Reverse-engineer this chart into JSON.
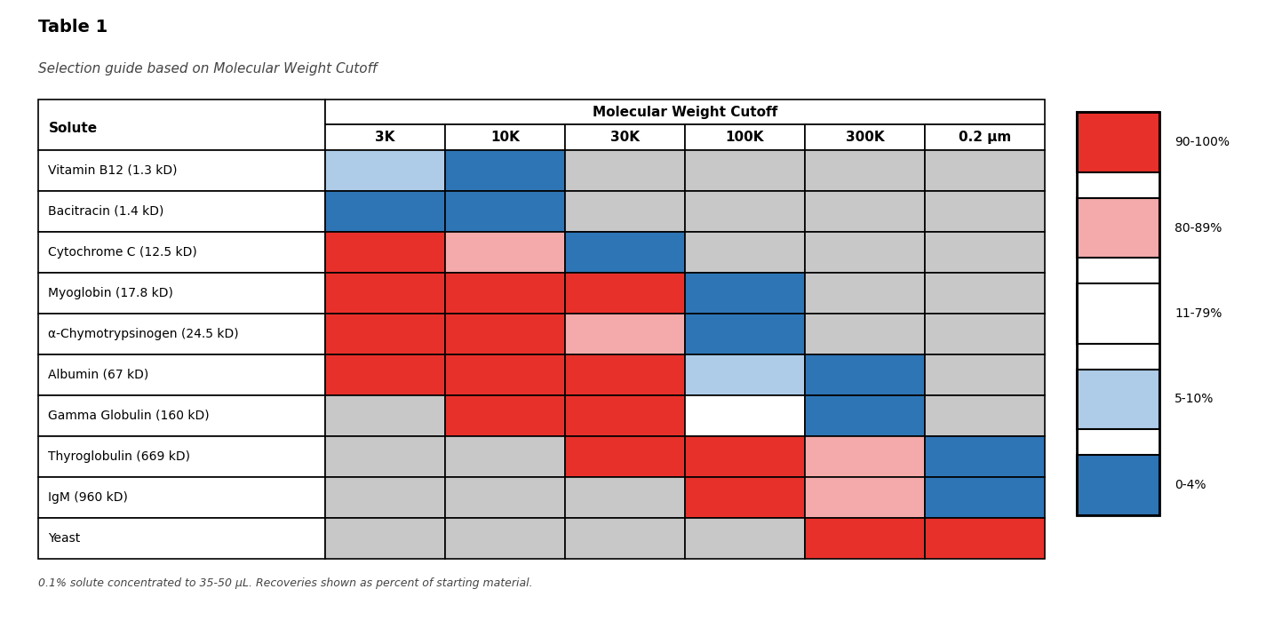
{
  "title": "Table 1",
  "subtitle": "Selection guide based on Molecular Weight Cutoff",
  "footnote": "0.1% solute concentrated to 35-50 μL. Recoveries shown as percent of starting material.",
  "col_header": "Molecular Weight Cutoff",
  "columns": [
    "3K",
    "10K",
    "30K",
    "100K",
    "300K",
    "0.2 μm"
  ],
  "rows": [
    "Vitamin B12 (1.3 kD)",
    "Bacitracin (1.4 kD)",
    "Cytochrome C (12.5 kD)",
    "Myoglobin (17.8 kD)",
    "α-Chymotrypsinogen (24.5 kD)",
    "Albumin (67 kD)",
    "Gamma Globulin (160 kD)",
    "Thyroglobulin (669 kD)",
    "IgM (960 kD)",
    "Yeast"
  ],
  "colors": {
    "red": "#E8302A",
    "pink": "#F4AAAA",
    "white": "#FFFFFF",
    "light_blue": "#AECCE8",
    "blue": "#2E75B6",
    "gray": "#C8C8C8"
  },
  "cell_colors": [
    [
      "light_blue",
      "blue",
      "gray",
      "gray",
      "gray",
      "gray"
    ],
    [
      "blue",
      "blue",
      "gray",
      "gray",
      "gray",
      "gray"
    ],
    [
      "red",
      "pink",
      "blue",
      "gray",
      "gray",
      "gray"
    ],
    [
      "red",
      "red",
      "red",
      "blue",
      "gray",
      "gray"
    ],
    [
      "red",
      "red",
      "pink",
      "blue",
      "gray",
      "gray"
    ],
    [
      "red",
      "red",
      "red",
      "light_blue",
      "blue",
      "gray"
    ],
    [
      "gray",
      "red",
      "red",
      "white",
      "blue",
      "gray"
    ],
    [
      "gray",
      "gray",
      "red",
      "red",
      "pink",
      "blue"
    ],
    [
      "gray",
      "gray",
      "gray",
      "red",
      "pink",
      "blue"
    ],
    [
      "gray",
      "gray",
      "gray",
      "gray",
      "red",
      "red"
    ]
  ],
  "legend": [
    {
      "color": "red",
      "label": "90-100%"
    },
    {
      "color": "pink",
      "label": "80-89%"
    },
    {
      "color": "white",
      "label": "11-79%"
    },
    {
      "color": "light_blue",
      "label": "5-10%"
    },
    {
      "color": "blue",
      "label": "0-4%"
    }
  ],
  "background": "#FFFFFF",
  "title_fontsize": 14,
  "subtitle_fontsize": 11,
  "header_fontsize": 11,
  "cell_fontsize": 10,
  "footnote_fontsize": 9
}
